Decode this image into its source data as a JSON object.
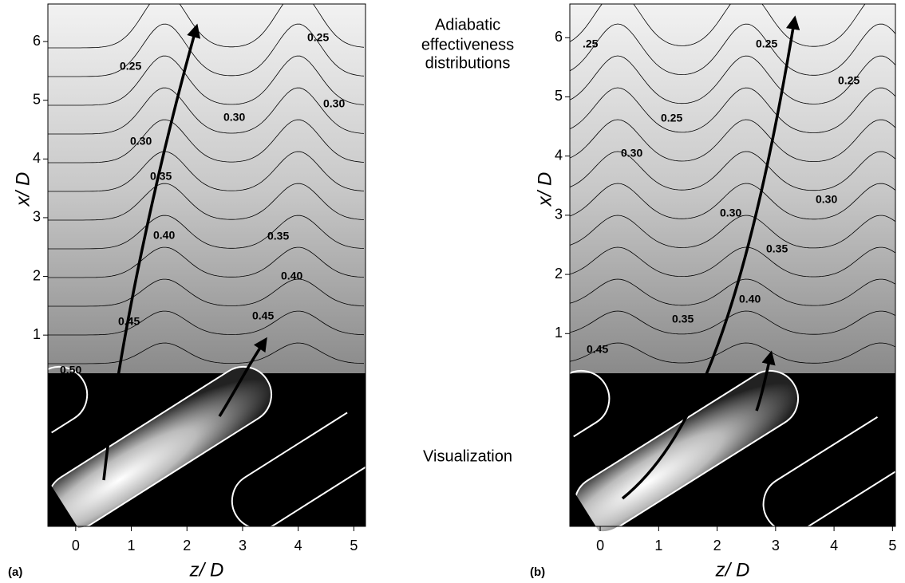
{
  "annotations": [
    "Adiabatic",
    "effectiveness",
    "distributions",
    "Visualization"
  ],
  "chart_data": [
    {
      "type": "contour",
      "panel_label": "(a)",
      "xlabel": "z/ D",
      "ylabel": "x/ D",
      "xlim": [
        -0.5,
        5.21
      ],
      "ylim": [
        0.35,
        6.64
      ],
      "xticks": [
        0,
        1,
        2,
        3,
        4,
        5
      ],
      "yticks": [
        1,
        2,
        3,
        4,
        5,
        6
      ],
      "contour_labels": [
        "0.25",
        "0.25",
        "0.30",
        "0.30",
        "0.30",
        "0.35",
        "0.35",
        "0.40",
        "0.40",
        "0.45",
        "0.45",
        "0.50"
      ]
    },
    {
      "type": "contour",
      "panel_label": "(b)",
      "xlabel": "z/ D",
      "ylabel": "x/ D",
      "xlim": [
        -0.52,
        5.05
      ],
      "ylim": [
        0.33,
        6.57
      ],
      "xticks": [
        0,
        1,
        2,
        3,
        4,
        5
      ],
      "yticks": [
        1,
        2,
        3,
        4,
        5,
        6
      ],
      "contour_labels": [
        ".25",
        "0.25",
        "0.25",
        "0.25",
        "0.30",
        "0.30",
        "0.30",
        "0.35",
        "0.35",
        "0.40",
        "0.45"
      ]
    }
  ]
}
